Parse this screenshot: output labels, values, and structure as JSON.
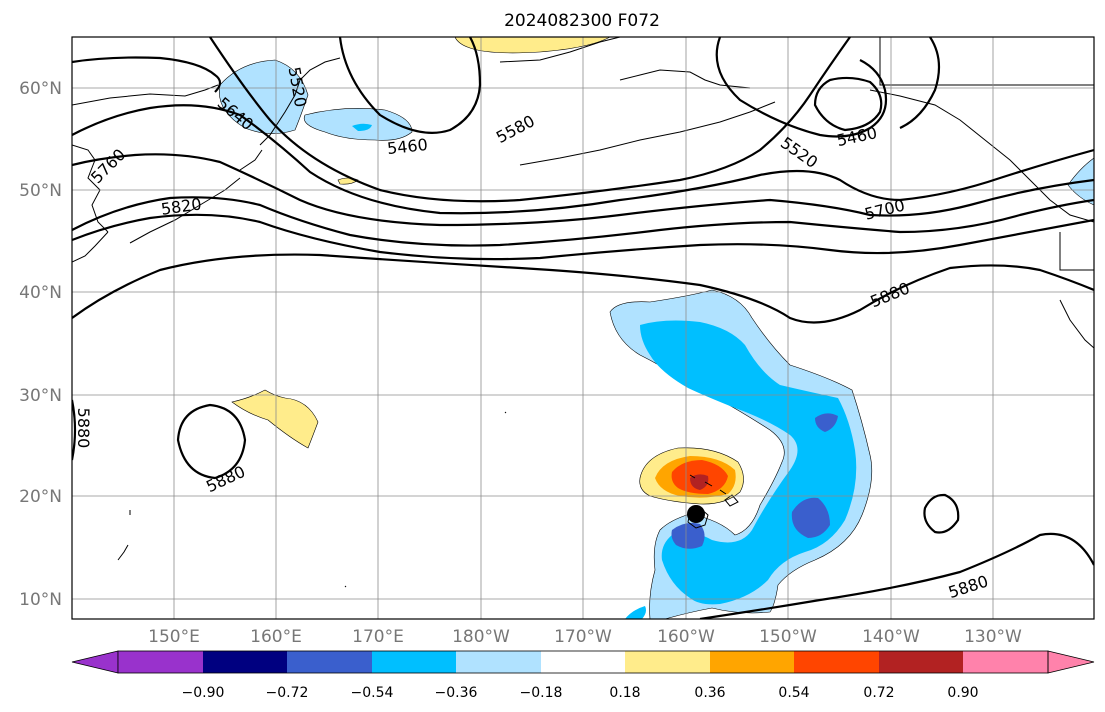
{
  "title": "2024082300 F072",
  "map": {
    "lat_labels": [
      "60°N",
      "50°N",
      "40°N",
      "30°N",
      "20°N",
      "10°N"
    ],
    "lon_labels": [
      "150°E",
      "160°E",
      "170°E",
      "180°W",
      "170°W",
      "160°W",
      "150°W",
      "140°W",
      "130°W"
    ],
    "contour_labels": [
      "5640",
      "5760",
      "5820",
      "5520",
      "5460",
      "5580",
      "5520",
      "5460",
      "5700",
      "5880",
      "5880",
      "5880",
      "5880"
    ],
    "contour_color": "#000000",
    "marker": "storm-center-marker"
  },
  "colorbar": {
    "labels": [
      "−0.90",
      "−0.72",
      "−0.54",
      "−0.36",
      "−0.18",
      "0.18",
      "0.36",
      "0.54",
      "0.72",
      "0.90"
    ],
    "colors": [
      "#9932cc",
      "#000080",
      "#3a5fcd",
      "#00bfff",
      "#b0e2ff",
      "#ffffff",
      "#ffec8b",
      "#ffa500",
      "#ff4500",
      "#b22222",
      "#ff82ab"
    ]
  }
}
